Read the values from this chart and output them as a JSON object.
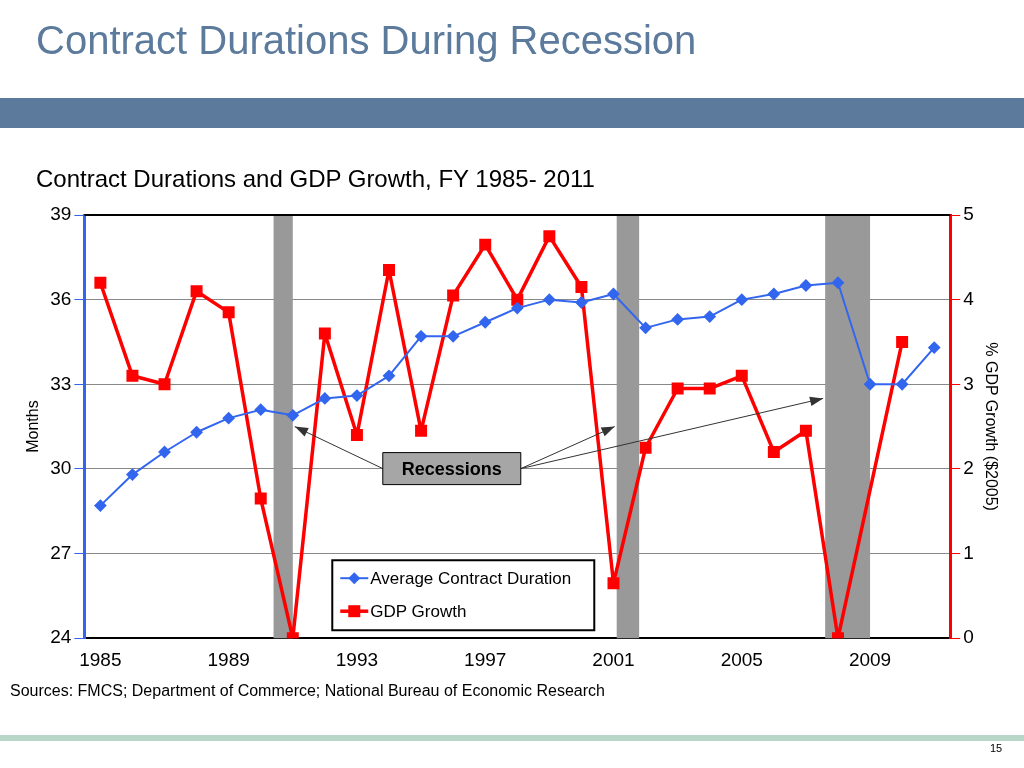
{
  "chart_data": {
    "type": "line",
    "title": "Contract Durations During Recession",
    "subtitle": "Contract Durations and GDP Growth, FY 1985- 2011",
    "ylabel": "Months",
    "y2label": "% GDP Growth ($2005)",
    "x": [
      1985,
      1986,
      1987,
      1988,
      1989,
      1990,
      1991,
      1992,
      1993,
      1994,
      1995,
      1996,
      1997,
      1998,
      1999,
      2000,
      2001,
      2002,
      2003,
      2004,
      2005,
      2006,
      2007,
      2008,
      2009,
      2010,
      2011
    ],
    "series": [
      {
        "name": "Average Contract Duration",
        "color": "#3366ee",
        "marker": "diamond",
        "values": [
          28.7,
          29.8,
          30.6,
          31.3,
          31.8,
          32.1,
          31.9,
          32.5,
          32.6,
          33.3,
          34.7,
          34.7,
          35.2,
          35.7,
          36.0,
          35.9,
          36.2,
          35.0,
          35.3,
          35.4,
          36.0,
          36.2,
          36.5,
          36.6,
          33.0,
          33.0,
          34.3
        ]
      },
      {
        "name": "GDP Growth",
        "color": "#ff0000",
        "marker": "square",
        "axis": "y2",
        "values": [
          4.2,
          3.1,
          3.0,
          4.1,
          3.85,
          1.65,
          0,
          3.6,
          2.4,
          4.35,
          2.45,
          4.05,
          4.65,
          4.0,
          4.75,
          4.15,
          0.65,
          2.25,
          2.95,
          2.95,
          3.1,
          2.2,
          2.45,
          0,
          null,
          3.5,
          null
        ]
      }
    ],
    "xlim": [
      1984.5,
      2011.5
    ],
    "xticks": [
      1985,
      1989,
      1993,
      1997,
      2001,
      2005,
      2009
    ],
    "ylim": [
      24,
      39
    ],
    "yticks": [
      24,
      27,
      30,
      33,
      36,
      39
    ],
    "y2lim": [
      0,
      5
    ],
    "y2ticks": [
      0,
      1,
      2,
      3,
      4,
      5
    ],
    "bands": [
      {
        "axis": "x",
        "from": 1990.4,
        "to": 1991.0,
        "color": "#999999"
      },
      {
        "axis": "x",
        "from": 2001.1,
        "to": 2001.8,
        "color": "#999999"
      },
      {
        "axis": "x",
        "from": 2007.6,
        "to": 2009.0,
        "color": "#999999"
      }
    ],
    "annotations": [
      {
        "text": "Recessions",
        "x": 1991.0,
        "y": 31.5
      },
      "Sources: FMCS; Department of Commerce; National Bureau of Economic Research",
      "15"
    ],
    "grid": "y",
    "legend": "bottom",
    "line_style": "solid"
  }
}
